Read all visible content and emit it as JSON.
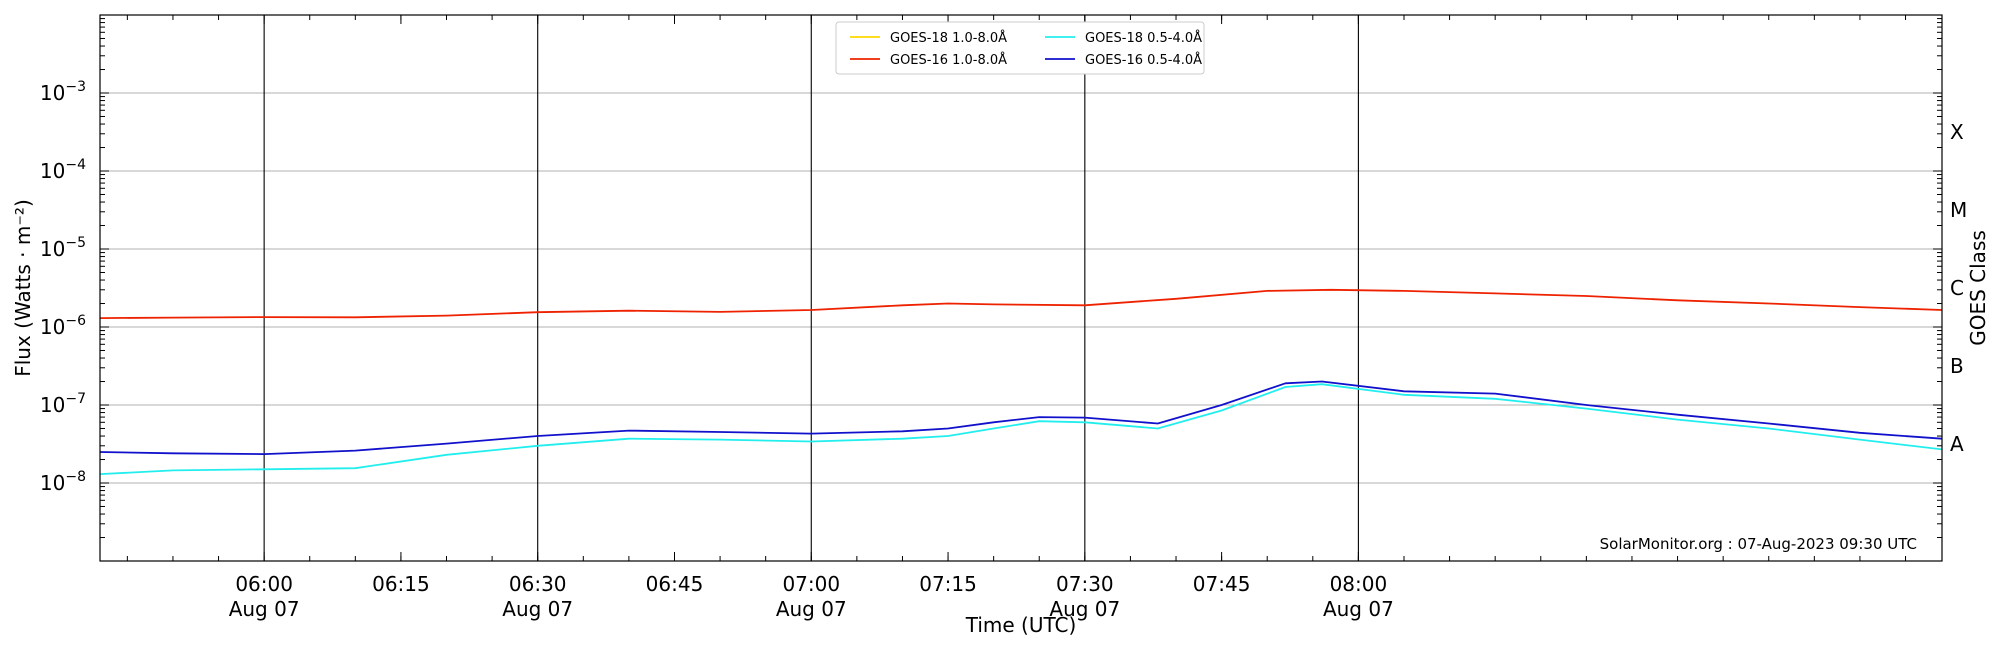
{
  "chart_data": {
    "type": "line",
    "xlabel": "Time (UTC)",
    "ylabel": "Flux (Watts · m⁻²)",
    "y2label": "GOES Class",
    "yscale": "log",
    "ylim": [
      1e-09,
      0.01
    ],
    "xlim": [
      "05:42",
      "09:04"
    ],
    "grid": "horizontal",
    "legend_position": "top-center",
    "y_ticks": [
      {
        "value": 1e-08,
        "base": "10",
        "exp": "−8"
      },
      {
        "value": 1e-07,
        "base": "10",
        "exp": "−7"
      },
      {
        "value": 1e-06,
        "base": "10",
        "exp": "−6"
      },
      {
        "value": 1e-05,
        "base": "10",
        "exp": "−5"
      },
      {
        "value": 0.0001,
        "base": "10",
        "exp": "−4"
      },
      {
        "value": 0.001,
        "base": "10",
        "exp": "−3"
      }
    ],
    "x_ticks": [
      {
        "time": "06:00",
        "date": "Aug 07"
      },
      {
        "time": "06:15",
        "date": ""
      },
      {
        "time": "06:30",
        "date": "Aug 07"
      },
      {
        "time": "06:45",
        "date": ""
      },
      {
        "time": "07:00",
        "date": "Aug 07"
      },
      {
        "time": "07:15",
        "date": ""
      },
      {
        "time": "07:30",
        "date": "Aug 07"
      },
      {
        "time": "07:45",
        "date": ""
      },
      {
        "time": "08:00",
        "date": "Aug 07"
      }
    ],
    "goes_classes": [
      {
        "label": "A",
        "value": 1e-08
      },
      {
        "label": "B",
        "value": 1e-07
      },
      {
        "label": "C",
        "value": 1e-06
      },
      {
        "label": "M",
        "value": 1e-05
      },
      {
        "label": "X",
        "value": 0.0001
      }
    ],
    "series": [
      {
        "name": "GOES-18 1.0-8.0Å",
        "color": "#FFD700",
        "points": []
      },
      {
        "name": "GOES-16 1.0-8.0Å",
        "color": "#EE2200",
        "points": [
          [
            "05:42",
            1.3e-06
          ],
          [
            "05:50",
            1.32e-06
          ],
          [
            "06:00",
            1.34e-06
          ],
          [
            "06:10",
            1.33e-06
          ],
          [
            "06:20",
            1.4e-06
          ],
          [
            "06:30",
            1.55e-06
          ],
          [
            "06:40",
            1.62e-06
          ],
          [
            "06:50",
            1.56e-06
          ],
          [
            "07:00",
            1.65e-06
          ],
          [
            "07:10",
            1.9e-06
          ],
          [
            "07:15",
            2e-06
          ],
          [
            "07:20",
            1.95e-06
          ],
          [
            "07:30",
            1.9e-06
          ],
          [
            "07:40",
            2.3e-06
          ],
          [
            "07:50",
            2.9e-06
          ],
          [
            "07:57",
            3e-06
          ],
          [
            "08:05",
            2.9e-06
          ],
          [
            "08:15",
            2.7e-06
          ],
          [
            "08:25",
            2.5e-06
          ],
          [
            "08:35",
            2.2e-06
          ],
          [
            "08:45",
            2e-06
          ],
          [
            "08:55",
            1.8e-06
          ],
          [
            "09:04",
            1.65e-06
          ]
        ]
      },
      {
        "name": "GOES-18 0.5-4.0Å",
        "color": "#22EEEE",
        "points": [
          [
            "05:42",
            1.3e-08
          ],
          [
            "05:50",
            1.45e-08
          ],
          [
            "06:00",
            1.5e-08
          ],
          [
            "06:10",
            1.55e-08
          ],
          [
            "06:20",
            2.3e-08
          ],
          [
            "06:30",
            3e-08
          ],
          [
            "06:40",
            3.7e-08
          ],
          [
            "06:50",
            3.6e-08
          ],
          [
            "07:00",
            3.4e-08
          ],
          [
            "07:10",
            3.7e-08
          ],
          [
            "07:15",
            4e-08
          ],
          [
            "07:20",
            5e-08
          ],
          [
            "07:25",
            6.2e-08
          ],
          [
            "07:30",
            6e-08
          ],
          [
            "07:38",
            5e-08
          ],
          [
            "07:45",
            8.5e-08
          ],
          [
            "07:52",
            1.7e-07
          ],
          [
            "07:56",
            1.85e-07
          ],
          [
            "08:05",
            1.35e-07
          ],
          [
            "08:15",
            1.2e-07
          ],
          [
            "08:25",
            9e-08
          ],
          [
            "08:35",
            6.5e-08
          ],
          [
            "08:45",
            5e-08
          ],
          [
            "08:55",
            3.6e-08
          ],
          [
            "09:04",
            2.7e-08
          ]
        ]
      },
      {
        "name": "GOES-16 0.5-4.0Å",
        "color": "#1111CC",
        "points": [
          [
            "05:42",
            2.5e-08
          ],
          [
            "05:50",
            2.4e-08
          ],
          [
            "06:00",
            2.35e-08
          ],
          [
            "06:10",
            2.6e-08
          ],
          [
            "06:20",
            3.2e-08
          ],
          [
            "06:30",
            4e-08
          ],
          [
            "06:40",
            4.7e-08
          ],
          [
            "06:50",
            4.5e-08
          ],
          [
            "07:00",
            4.3e-08
          ],
          [
            "07:10",
            4.6e-08
          ],
          [
            "07:15",
            5e-08
          ],
          [
            "07:20",
            6e-08
          ],
          [
            "07:25",
            7e-08
          ],
          [
            "07:30",
            6.9e-08
          ],
          [
            "07:38",
            5.8e-08
          ],
          [
            "07:45",
            1e-07
          ],
          [
            "07:52",
            1.9e-07
          ],
          [
            "07:56",
            2e-07
          ],
          [
            "08:05",
            1.5e-07
          ],
          [
            "08:15",
            1.4e-07
          ],
          [
            "08:25",
            1e-07
          ],
          [
            "08:35",
            7.5e-08
          ],
          [
            "08:45",
            5.8e-08
          ],
          [
            "08:55",
            4.4e-08
          ],
          [
            "09:04",
            3.7e-08
          ]
        ]
      }
    ]
  },
  "footer": "SolarMonitor.org : 07-Aug-2023 09:30 UTC"
}
